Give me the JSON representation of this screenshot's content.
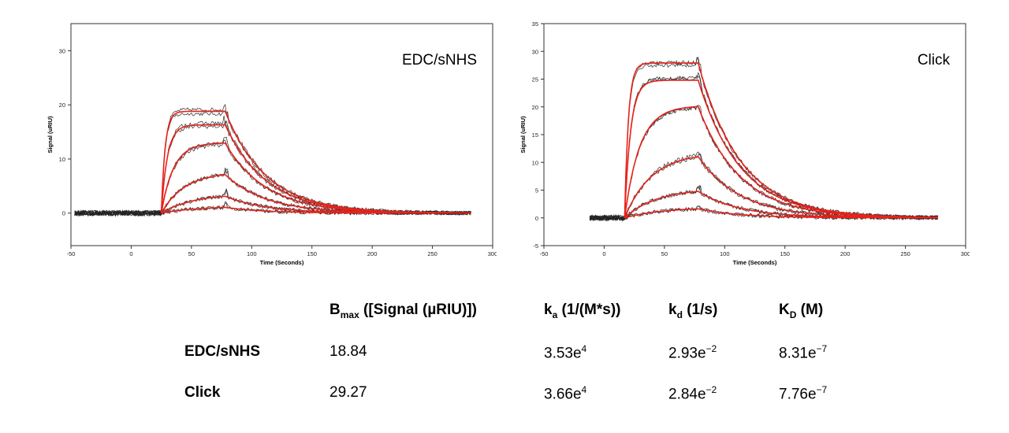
{
  "chart_data": [
    {
      "type": "line",
      "title": "",
      "annotation": "EDC/sNHS",
      "xlabel": "Time (Seconds)",
      "ylabel": "Signal (uRIU)",
      "xlim": [
        -50,
        300
      ],
      "ylim": [
        -6,
        35
      ],
      "xticks": [
        -50,
        0,
        50,
        100,
        150,
        200,
        250,
        300
      ],
      "yticks": [
        0,
        10,
        20,
        30
      ],
      "grid": false,
      "legend": "none",
      "association_start": 25,
      "dissociation_start": 78,
      "data_start": -47,
      "data_end": 282,
      "series": [
        {
          "rmax": 18.8,
          "kobs": 0.32
        },
        {
          "rmax": 16.3,
          "kobs": 0.2
        },
        {
          "rmax": 13.0,
          "kobs": 0.1
        },
        {
          "rmax": 7.6,
          "kobs": 0.052
        },
        {
          "rmax": 3.6,
          "kobs": 0.038
        },
        {
          "rmax": 1.3,
          "kobs": 0.032
        }
      ],
      "kd": 0.0293,
      "colors": {
        "data": "#222222",
        "fit": "#e8221b"
      }
    },
    {
      "type": "line",
      "title": "",
      "annotation": "Click",
      "xlabel": "Time (Seconds)",
      "ylabel": "Signal (uRIU)",
      "xlim": [
        -50,
        300
      ],
      "ylim": [
        -5,
        35
      ],
      "xticks": [
        -50,
        0,
        50,
        100,
        150,
        200,
        250,
        300
      ],
      "yticks": [
        -5,
        0,
        5,
        10,
        15,
        20,
        25,
        30,
        35
      ],
      "grid": false,
      "legend": "none",
      "association_start": 17,
      "dissociation_start": 78,
      "data_start": -12,
      "data_end": 277,
      "series": [
        {
          "rmax": 27.9,
          "kobs": 0.32
        },
        {
          "rmax": 24.8,
          "kobs": 0.2
        },
        {
          "rmax": 20.2,
          "kobs": 0.08
        },
        {
          "rmax": 11.8,
          "kobs": 0.045
        },
        {
          "rmax": 5.3,
          "kobs": 0.038
        },
        {
          "rmax": 1.9,
          "kobs": 0.032
        }
      ],
      "kd": 0.0284,
      "colors": {
        "data": "#222222",
        "fit": "#e8221b"
      }
    }
  ],
  "results_table": {
    "headers": {
      "bmax": {
        "main": "B",
        "sub": "max",
        "rest": " ([Signal (µRIU)])"
      },
      "ka": {
        "main": "k",
        "sub": "a",
        "rest": " (1/(M*s))"
      },
      "kd": {
        "main": "k",
        "sub": "d",
        "rest": " (1/s)"
      },
      "KD": {
        "main": "K",
        "sub": "D",
        "rest": " (M)"
      }
    },
    "rows": [
      {
        "label": "EDC/sNHS",
        "bmax": "18.84",
        "ka": {
          "mantissa": "3.53e",
          "exp": "4"
        },
        "kd": {
          "mantissa": "2.93e",
          "exp": "−2"
        },
        "KD": {
          "mantissa": "8.31e",
          "exp": "−7"
        }
      },
      {
        "label": "Click",
        "bmax": "29.27",
        "ka": {
          "mantissa": "3.66e",
          "exp": "4"
        },
        "kd": {
          "mantissa": "2.84e",
          "exp": "−2"
        },
        "KD": {
          "mantissa": "7.76e",
          "exp": "−7"
        }
      }
    ]
  }
}
